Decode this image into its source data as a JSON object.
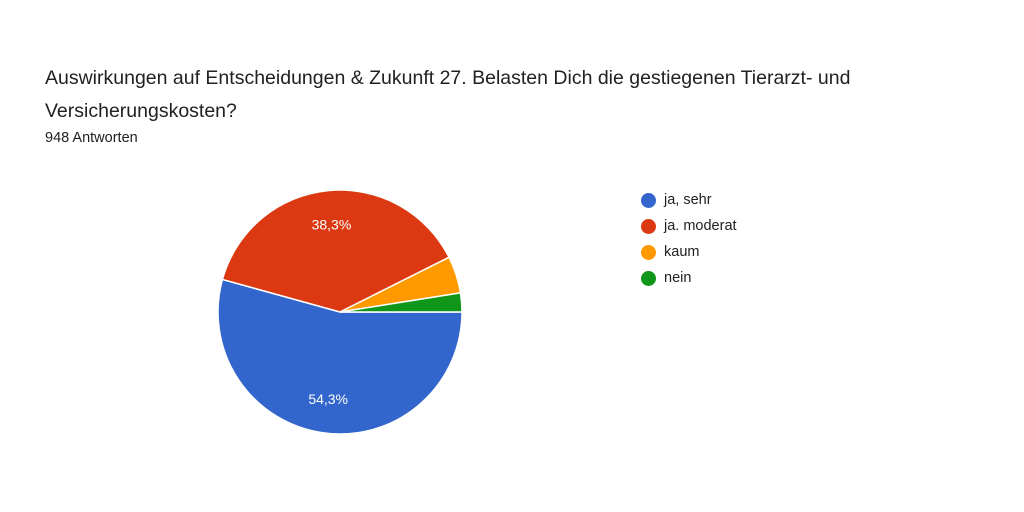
{
  "header": {
    "title": "Auswirkungen auf Entscheidungen & Zukunft   27. Belasten Dich die gestiegenen Tierarzt- und Versicherungskosten?",
    "subtitle": "948 Antworten"
  },
  "chart_data": {
    "type": "pie",
    "categories": [
      "ja, sehr",
      "ja. moderat",
      "kaum",
      "nein"
    ],
    "values": [
      54.3,
      38.3,
      4.9,
      2.5
    ],
    "data_labels": [
      "54,3%",
      "38,3%",
      "",
      ""
    ],
    "colors": [
      "#3366cc",
      "#dc3912",
      "#ff9900",
      "#109618"
    ],
    "legend_position": "right"
  }
}
